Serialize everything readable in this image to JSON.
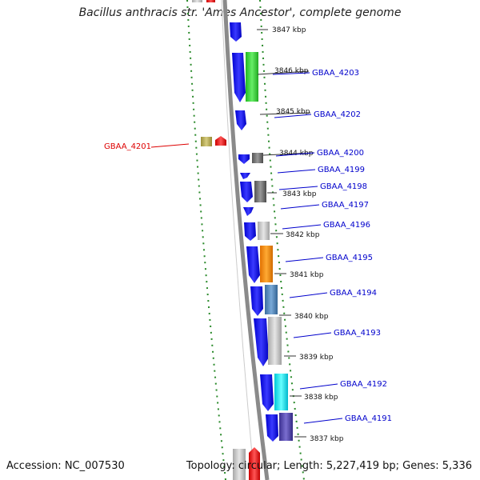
{
  "title": "Bacillus anthracis str. 'Ames Ancestor', complete genome",
  "accession": "Accession: NC_007530",
  "summary": "Topology: circular; Length: 5,227,419 bp; Genes: 5,336",
  "ticks": [
    "3847 kbp",
    "3846 kbp",
    "3845 kbp",
    "3844 kbp",
    "3843 kbp",
    "3842 kbp",
    "3841 kbp",
    "3840 kbp",
    "3839 kbp",
    "3838 kbp",
    "3837 kbp"
  ],
  "genes": [
    {
      "name": "GBAA_4203",
      "color": "#0000cc"
    },
    {
      "name": "GBAA_4202",
      "color": "#0000cc"
    },
    {
      "name": "GBAA_4201",
      "color": "#dd0000"
    },
    {
      "name": "GBAA_4200",
      "color": "#0000cc"
    },
    {
      "name": "GBAA_4199",
      "color": "#0000cc"
    },
    {
      "name": "GBAA_4198",
      "color": "#0000cc"
    },
    {
      "name": "GBAA_4197",
      "color": "#0000cc"
    },
    {
      "name": "GBAA_4196",
      "color": "#0000cc"
    },
    {
      "name": "GBAA_4195",
      "color": "#0000cc"
    },
    {
      "name": "GBAA_4194",
      "color": "#0000cc"
    },
    {
      "name": "GBAA_4193",
      "color": "#0000cc"
    },
    {
      "name": "GBAA_4192",
      "color": "#0000cc"
    },
    {
      "name": "GBAA_4191",
      "color": "#0000cc"
    }
  ],
  "colors": {
    "strand_arrow": "#0a0ae6",
    "backbone": "#888888",
    "gc_skew_dots": "#2a8a2a",
    "cog_green": "#33cc33",
    "cog_orange": "#ff8800",
    "cog_cyan": "#00e0ee",
    "cog_steel": "#4682b4",
    "cog_gray": "#bbbbbb",
    "cog_dark": "#666666",
    "cog_purple": "#4b3fa0",
    "cog_olive": "#b5a94a",
    "reverse_red": "#ee0000"
  }
}
